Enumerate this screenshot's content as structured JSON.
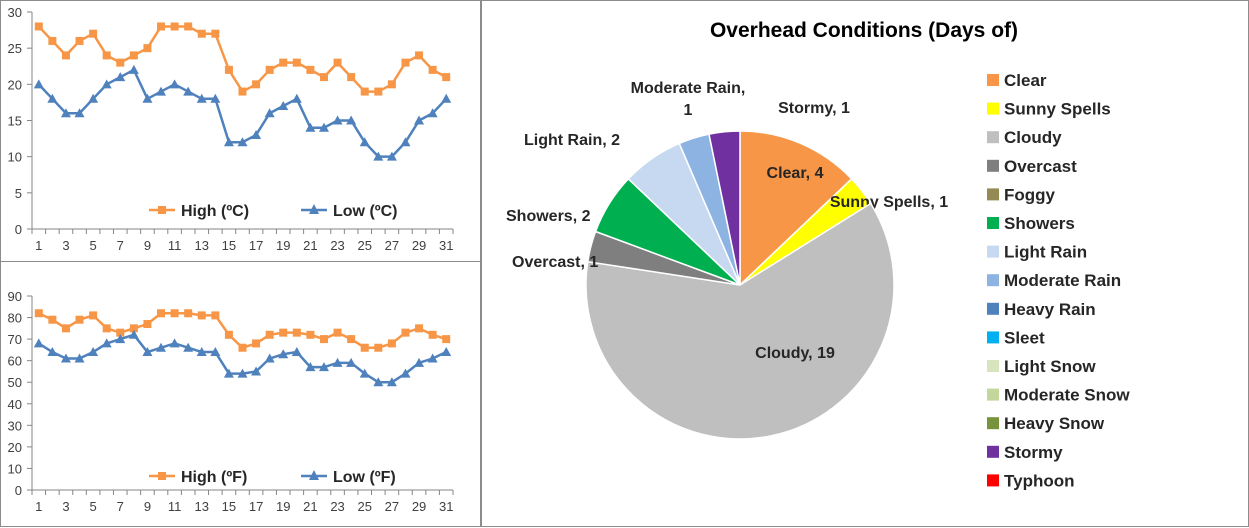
{
  "chart_data": [
    {
      "type": "line",
      "x": [
        1,
        2,
        3,
        4,
        5,
        6,
        7,
        8,
        9,
        10,
        11,
        12,
        13,
        14,
        15,
        16,
        17,
        18,
        19,
        20,
        21,
        22,
        23,
        24,
        25,
        26,
        27,
        28,
        29,
        30,
        31
      ],
      "x_tick_labels": [
        "1",
        "3",
        "5",
        "7",
        "9",
        "11",
        "13",
        "15",
        "17",
        "19",
        "21",
        "23",
        "25",
        "27",
        "29",
        "31"
      ],
      "ylim": [
        0,
        30
      ],
      "y_ticks": [
        "0",
        "5",
        "10",
        "15",
        "20",
        "25",
        "30"
      ],
      "legend_position": "bottom",
      "series": [
        {
          "name": "High (ºC)",
          "color": "#f79646",
          "marker": "square",
          "values": [
            28,
            26,
            24,
            26,
            27,
            24,
            23,
            24,
            25,
            28,
            28,
            28,
            27,
            27,
            22,
            19,
            20,
            22,
            23,
            23,
            22,
            21,
            23,
            21,
            19,
            19,
            20,
            23,
            24,
            22,
            21
          ]
        },
        {
          "name": "Low (ºC)",
          "color": "#4f81bd",
          "marker": "triangle",
          "values": [
            20,
            18,
            16,
            16,
            18,
            20,
            21,
            22,
            18,
            19,
            20,
            19,
            18,
            18,
            12,
            12,
            13,
            16,
            17,
            18,
            14,
            14,
            15,
            15,
            12,
            10,
            10,
            12,
            15,
            16,
            18
          ]
        }
      ]
    },
    {
      "type": "line",
      "x": [
        1,
        2,
        3,
        4,
        5,
        6,
        7,
        8,
        9,
        10,
        11,
        12,
        13,
        14,
        15,
        16,
        17,
        18,
        19,
        20,
        21,
        22,
        23,
        24,
        25,
        26,
        27,
        28,
        29,
        30,
        31
      ],
      "x_tick_labels": [
        "1",
        "3",
        "5",
        "7",
        "9",
        "11",
        "13",
        "15",
        "17",
        "19",
        "21",
        "23",
        "25",
        "27",
        "29",
        "31"
      ],
      "ylim": [
        0,
        90
      ],
      "y_ticks": [
        "0",
        "10",
        "20",
        "30",
        "40",
        "50",
        "60",
        "70",
        "80",
        "90"
      ],
      "legend_position": "bottom",
      "series": [
        {
          "name": "High (ºF)",
          "color": "#f79646",
          "marker": "square",
          "values": [
            82,
            79,
            75,
            79,
            81,
            75,
            73,
            75,
            77,
            82,
            82,
            82,
            81,
            81,
            72,
            66,
            68,
            72,
            73,
            73,
            72,
            70,
            73,
            70,
            66,
            66,
            68,
            73,
            75,
            72,
            70
          ]
        },
        {
          "name": "Low (ºF)",
          "color": "#4f81bd",
          "marker": "triangle",
          "values": [
            68,
            64,
            61,
            61,
            64,
            68,
            70,
            72,
            64,
            66,
            68,
            66,
            64,
            64,
            54,
            54,
            55,
            61,
            63,
            64,
            57,
            57,
            59,
            59,
            54,
            50,
            50,
            54,
            59,
            61,
            64
          ]
        }
      ]
    },
    {
      "type": "pie",
      "title": "Overhead Conditions (Days of)",
      "legend_position": "right",
      "categories": [
        "Clear",
        "Sunny Spells",
        "Cloudy",
        "Overcast",
        "Foggy",
        "Showers",
        "Light Rain",
        "Moderate Rain",
        "Heavy Rain",
        "Sleet",
        "Light Snow",
        "Moderate Snow",
        "Heavy Snow",
        "Stormy",
        "Typhoon"
      ],
      "values": [
        4,
        1,
        19,
        1,
        0,
        2,
        2,
        1,
        0,
        0,
        0,
        0,
        0,
        1,
        0
      ],
      "colors": [
        "#f79646",
        "#ffff00",
        "#bfbfbf",
        "#7f7f7f",
        "#948a54",
        "#00b050",
        "#c6d9f1",
        "#8db3e2",
        "#4f81bd",
        "#00b0f0",
        "#d7e4bd",
        "#c3d69b",
        "#77933c",
        "#7030a0",
        "#ff0000"
      ],
      "data_labels": [
        "Clear, 4",
        "Sunny Spells, 1",
        "Cloudy, 19",
        "Overcast, 1",
        "",
        "Showers, 2",
        "Light Rain, 2",
        "Moderate Rain,|1",
        "",
        "",
        "",
        "",
        "",
        "Stormy, 1",
        ""
      ]
    }
  ]
}
